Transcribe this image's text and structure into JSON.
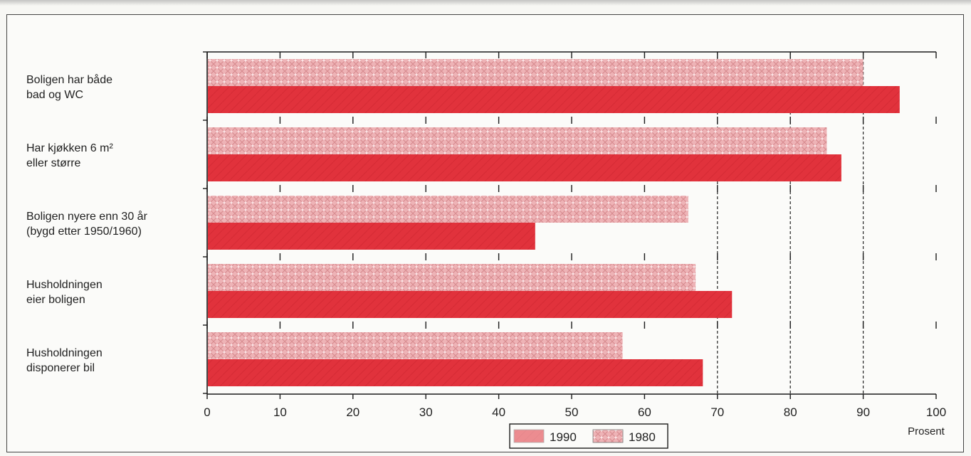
{
  "chart_data": {
    "type": "bar",
    "orientation": "horizontal",
    "categories": [
      [
        "Boligen har både",
        "bad og WC"
      ],
      [
        "Har kjøkken 6 m²",
        "eller større"
      ],
      [
        "Boligen nyere enn 30 år",
        "(bygd etter 1950/1960)"
      ],
      [
        "Husholdningen",
        "eier boligen"
      ],
      [
        "Husholdningen",
        "disponerer bil"
      ]
    ],
    "series": [
      {
        "name": "1980",
        "values": [
          90,
          85,
          66,
          67,
          57
        ],
        "color": "#e9a0a4",
        "pattern": "dotted-crosshatch"
      },
      {
        "name": "1990",
        "values": [
          95,
          87,
          45,
          72,
          68
        ],
        "color": "#e1323c",
        "pattern": "solid"
      }
    ],
    "legend": {
      "placement": "bottom-center",
      "order": [
        "1990",
        "1980"
      ]
    },
    "x_ticks": [
      "0",
      "10",
      "20",
      "30",
      "40",
      "50",
      "60",
      "70",
      "80",
      "90",
      "100"
    ],
    "xlim": [
      0,
      100
    ],
    "xlabel": "Prosent",
    "ylabel": "",
    "title": "",
    "grid": {
      "x_dashed_from": 70
    }
  },
  "colors": {
    "bar_1990": "#e1323c",
    "bar_1980": "#e9a0a4",
    "axis": "#1a1a1a",
    "frame": "#444444"
  }
}
